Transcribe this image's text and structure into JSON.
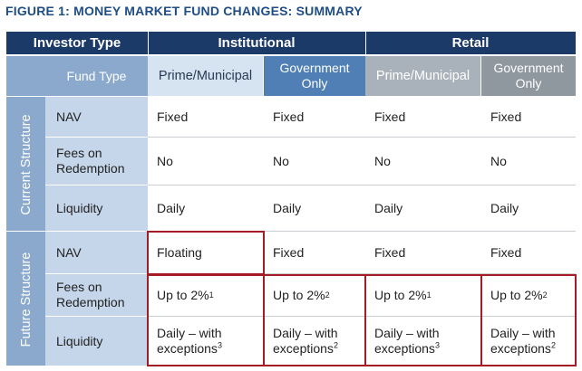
{
  "title": "FIGURE 1: MONEY MARKET FUND CHANGES: SUMMARY",
  "header": {
    "investor_type": "Investor Type",
    "institutional": "Institutional",
    "retail": "Retail",
    "fund_type": "Fund Type",
    "prime_municipal": "Prime/Municipal",
    "government_only": "Government Only"
  },
  "sections": {
    "current": "Current Structure",
    "future": "Future Structure"
  },
  "rows": [
    {
      "label": "NAV",
      "cells": [
        "Fixed",
        "Fixed",
        "Fixed",
        "Fixed"
      ]
    },
    {
      "label": "Fees on Redemption",
      "cells": [
        "No",
        "No",
        "No",
        "No"
      ]
    },
    {
      "label": "Liquidity",
      "cells": [
        "Daily",
        "Daily",
        "Daily",
        "Daily"
      ]
    },
    {
      "label": "NAV",
      "cells": [
        "Floating",
        "Fixed",
        "Fixed",
        "Fixed"
      ]
    },
    {
      "label": "Fees on Redemption",
      "cells": [
        "Up to 2%",
        "Up to 2%",
        "Up to 2%",
        "Up to 2%"
      ],
      "notes": [
        "1",
        "2",
        "1",
        "2"
      ]
    },
    {
      "label": "Liquidity",
      "cells": [
        "Daily – with exceptions",
        "Daily – with exceptions",
        "Daily – with exceptions",
        "Daily – with exceptions"
      ],
      "notes": [
        "3",
        "2",
        "3",
        "2"
      ]
    }
  ],
  "colors": {
    "dark_header": "#1b3a67",
    "institutional_light": "#d6e3f1",
    "institutional_blue": "#4f7fb4",
    "retail_gray": "#a9b2ba",
    "retail_dark_gray": "#8f989f",
    "side_band": "#8aa9cc",
    "row_label": "#c5d6ea",
    "highlight_border": "#a51c24"
  }
}
